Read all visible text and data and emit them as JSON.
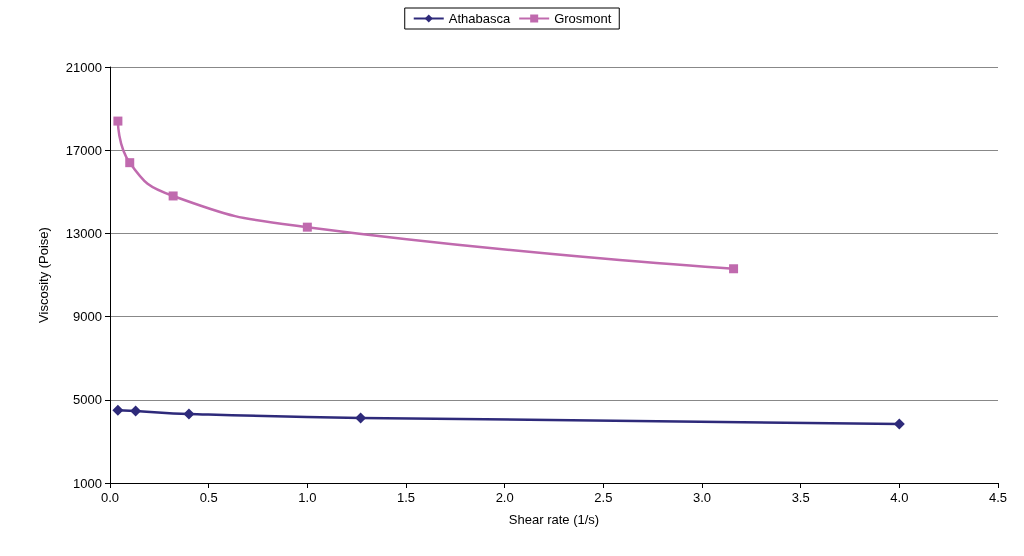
{
  "chart_data": {
    "type": "line",
    "xlabel": "Shear rate (1/s)",
    "ylabel": "Viscosity (Poise)",
    "xlim": [
      0,
      4.5
    ],
    "xticks": [
      {
        "value": 0,
        "label": "0.0"
      },
      {
        "value": 0.5,
        "label": "0.5"
      },
      {
        "value": 1,
        "label": "1.0"
      },
      {
        "value": 1.5,
        "label": "1.5"
      },
      {
        "value": 2,
        "label": "2.0"
      },
      {
        "value": 2.5,
        "label": "2.5"
      },
      {
        "value": 3,
        "label": "3.0"
      },
      {
        "value": 3.5,
        "label": "3.5"
      },
      {
        "value": 4,
        "label": "4.0"
      },
      {
        "value": 4.5,
        "label": "4.5"
      }
    ],
    "ylim": [
      1000,
      21000
    ],
    "yticks": [
      1000,
      5000,
      9000,
      13000,
      17000,
      21000
    ],
    "grid": "y",
    "legend": "top",
    "series": [
      {
        "name": "Athabasca",
        "color": "#2e2a7a",
        "marker": "diamond",
        "x": [
          0.04,
          0.13,
          0.4,
          1.27,
          4.0
        ],
        "values": [
          4500,
          4460,
          4320,
          4130,
          3840
        ]
      },
      {
        "name": "Grosmont",
        "color": "#c06aae",
        "marker": "square",
        "x": [
          0.04,
          0.1,
          0.32,
          1.0,
          3.16
        ],
        "values": [
          18400,
          16400,
          14800,
          13300,
          11300
        ]
      }
    ]
  }
}
